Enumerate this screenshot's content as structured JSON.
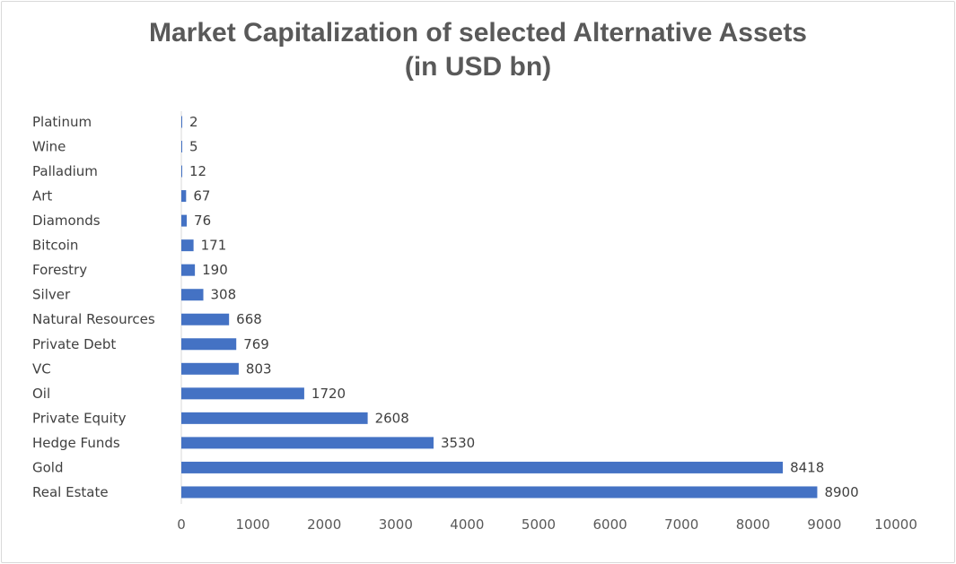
{
  "chart_data": {
    "type": "bar",
    "orientation": "horizontal",
    "title_line1": "Market Capitalization of selected Alternative Assets",
    "title_line2": "(in USD bn)",
    "categories": [
      "Platinum",
      "Wine",
      "Palladium",
      "Art",
      "Diamonds",
      "Bitcoin",
      "Forestry",
      "Silver",
      "Natural Resources",
      "Private Debt",
      "VC",
      "Oil",
      "Private Equity",
      "Hedge Funds",
      "Gold",
      "Real Estate"
    ],
    "values": [
      2,
      5,
      12,
      67,
      76,
      171,
      190,
      308,
      668,
      769,
      803,
      1720,
      2608,
      3530,
      8418,
      8900
    ],
    "xlim": [
      0,
      10000
    ],
    "xticks": [
      "0",
      "1000",
      "2000",
      "3000",
      "4000",
      "5000",
      "6000",
      "7000",
      "8000",
      "9000",
      "10000"
    ],
    "grid": false,
    "legend": "none",
    "bar_color": "#4472c4",
    "data_labels": true
  }
}
